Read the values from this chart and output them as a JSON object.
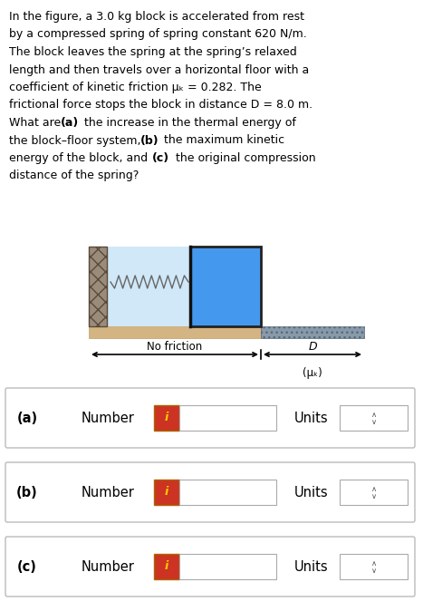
{
  "background_color": "#ffffff",
  "text_color": "#000000",
  "problem_text_lines": [
    "In the figure, a 3.0 kg block is accelerated from rest",
    "by a compressed spring of spring constant 620 N/m.",
    "The block leaves the spring at the spring’s relaxed",
    "length and then travels over a horizontal floor with a",
    "coefficient of kinetic friction μₖ = 0.282. The",
    "frictional force stops the block in distance D = 8.0 m.",
    "What are (a) the increase in the thermal energy of",
    "the block–floor system, (b) the maximum kinetic",
    "energy of the block, and (c) the original compression",
    "distance of the spring?"
  ],
  "bold_segments": {
    "line6": {
      "text": "(a)",
      "start": 9,
      "end": 12
    },
    "line7": {
      "text": "(b)",
      "start": 25,
      "end": 28
    },
    "line8": {
      "text": "(c)",
      "start": 15,
      "end": 18
    }
  },
  "colors": {
    "wall_face": "#9b8b7a",
    "wall_edge": "#5a4a3a",
    "spring_bg": "#d0e8f8",
    "spring_line": "#666666",
    "block_face": "#4499ee",
    "block_edge": "#222222",
    "floor_tan_face": "#d4b483",
    "floor_tan_edge": "#c0a060",
    "floor_fric_face": "#8899aa",
    "floor_fric_edge": "#556677",
    "arrow_color": "#000000",
    "info_btn_bg": "#cc3322",
    "info_btn_border": "#aa6600",
    "info_btn_text": "#ffcc00",
    "input_border": "#aaaaaa",
    "box_border": "#bbbbbb"
  },
  "diagram": {
    "no_friction_label": "No friction",
    "D_label": "D",
    "mu_label": "(μₖ)"
  },
  "answer_rows": [
    {
      "label": "(a)",
      "text": "Number"
    },
    {
      "label": "(b)",
      "text": "Number"
    },
    {
      "label": "(c)",
      "text": "Number"
    }
  ]
}
